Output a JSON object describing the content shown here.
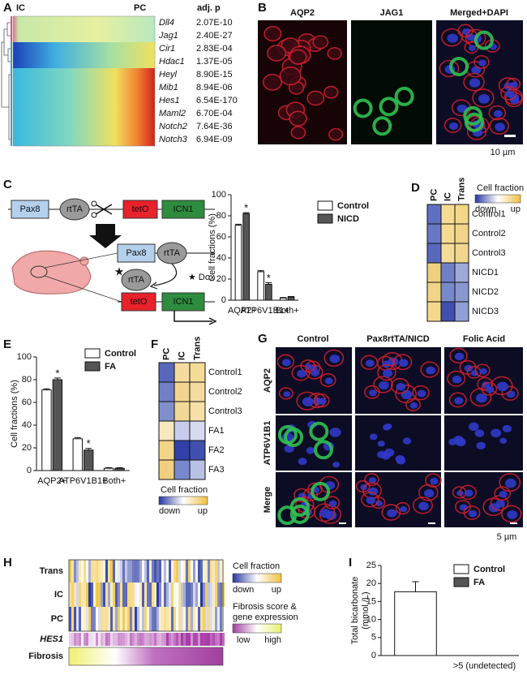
{
  "panel_labels": [
    "A",
    "B",
    "C",
    "D",
    "E",
    "F",
    "G",
    "H",
    "I"
  ],
  "panel_a": {
    "column_labels": [
      "IC",
      "PC"
    ],
    "p_header": "adj. p",
    "genes": [
      "Dll4",
      "Jag1",
      "Cir1",
      "Hdac1",
      "Heyl",
      "Mib1",
      "Hes1",
      "Maml2",
      "Notch2",
      "Notch3"
    ],
    "p_values": [
      "2.07E-10",
      "2.40E-27",
      "2.83E-04",
      "1.37E-05",
      "8.90E-15",
      "8.94E-06",
      "6.54E-170",
      "6.70E-04",
      "7.64E-36",
      "6.94E-09"
    ]
  },
  "panel_b": {
    "titles": [
      "AQP2",
      "JAG1",
      "Merged+DAPI"
    ],
    "scale_bar": "10 µm"
  },
  "panel_c": {
    "driver": "Pax8",
    "transactivator": "rtTA",
    "operator": "tetO",
    "transgene": "ICN1",
    "star": "★",
    "inducer": "★ Dox"
  },
  "panel_d": {
    "columns": [
      "PC",
      "IC",
      "Trans"
    ],
    "rows": [
      "Control1",
      "Control2",
      "Control3",
      "NICD1",
      "NICD2",
      "NICD3"
    ],
    "legend_title": "Cell fraction",
    "legend_low": "down",
    "legend_high": "up"
  },
  "panel_f": {
    "columns": [
      "PC",
      "IC",
      "Trans"
    ],
    "rows": [
      "Control1",
      "Control2",
      "Control3",
      "FA1",
      "FA2",
      "FA3"
    ],
    "legend_title": "Cell fraction",
    "legend_low": "down",
    "legend_high": "up"
  },
  "panel_g": {
    "columns": [
      "Control",
      "Pax8rtTA/NICD",
      "Folic Acid"
    ],
    "rows": [
      "AQP2",
      "ATP6V1B1",
      "Merge"
    ],
    "scale_bar": "5 µm"
  },
  "panel_h": {
    "rows": [
      "Trans",
      "IC",
      "PC",
      "HES1",
      "Fibrosis"
    ],
    "legend1_title": "Cell fraction",
    "legend1_low": "down",
    "legend1_high": "up",
    "legend2_title": [
      "Fibrosis score &",
      "gene expression"
    ],
    "legend2_low": "low",
    "legend2_high": "high"
  },
  "chart_data": [
    {
      "type": "bar",
      "ylabel": "Cell fractions (%)",
      "categories": [
        "AQP2+",
        "ATP6V1B1+",
        "Both+"
      ],
      "series": [
        {
          "name": "Control",
          "color": "#ffffff",
          "values": [
            71,
            27,
            2
          ],
          "errors": [
            1,
            1,
            0.5
          ]
        },
        {
          "name": "NICD",
          "color": "#555555",
          "values": [
            82,
            15,
            3
          ],
          "errors": [
            1,
            1.5,
            0.5
          ],
          "annotations": [
            "*",
            "*",
            null
          ]
        }
      ],
      "ylim": [
        0,
        100
      ],
      "yticks": [
        0,
        20,
        40,
        60,
        80,
        100
      ],
      "legend": "right"
    },
    {
      "type": "bar",
      "ylabel": "Cell fractions (%)",
      "categories": [
        "AQP2+",
        "ATP6V1B1+",
        "Both+"
      ],
      "series": [
        {
          "name": "Control",
          "color": "#ffffff",
          "values": [
            71,
            28,
            2
          ],
          "errors": [
            1,
            1,
            0.5
          ]
        },
        {
          "name": "FA",
          "color": "#555555",
          "values": [
            80,
            18,
            2
          ],
          "errors": [
            1.5,
            1.5,
            0.5
          ],
          "annotations": [
            "*",
            "*",
            null
          ]
        }
      ],
      "ylim": [
        0,
        100
      ],
      "yticks": [
        0,
        20,
        40,
        60,
        80,
        100
      ],
      "legend": "upper right"
    },
    {
      "type": "bar",
      "ylabel": [
        "Total bicarbonate",
        "(mmol /L)"
      ],
      "categories": [
        null,
        ">5 (undetected)"
      ],
      "series": [
        {
          "name": "Control",
          "color": "#ffffff",
          "values": [
            17.7,
            null
          ],
          "errors": [
            2.8,
            null
          ]
        },
        {
          "name": "FA",
          "color": "#555555",
          "values": [
            null,
            null
          ],
          "errors": [
            null,
            null
          ]
        }
      ],
      "ylim": [
        0,
        25
      ],
      "yticks": [
        0,
        5,
        10,
        15,
        20,
        25
      ],
      "legend": "upper right"
    }
  ]
}
